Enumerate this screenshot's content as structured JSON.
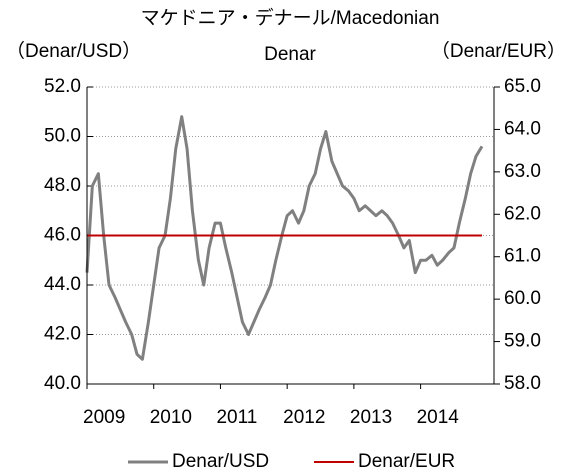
{
  "chart_data": {
    "type": "line",
    "title_lines": [
      "マケドニア・デナール/Macedonian",
      "Denar"
    ],
    "ylabel": "（Denar/USD）",
    "y2label": "（Denar/EUR）",
    "x": [
      2009.0,
      2009.08,
      2009.17,
      2009.25,
      2009.33,
      2009.42,
      2009.5,
      2009.58,
      2009.67,
      2009.75,
      2009.83,
      2009.92,
      2010.0,
      2010.08,
      2010.17,
      2010.25,
      2010.33,
      2010.42,
      2010.5,
      2010.58,
      2010.67,
      2010.75,
      2010.83,
      2010.92,
      2011.0,
      2011.08,
      2011.17,
      2011.25,
      2011.33,
      2011.42,
      2011.5,
      2011.58,
      2011.67,
      2011.75,
      2011.83,
      2011.92,
      2012.0,
      2012.08,
      2012.17,
      2012.25,
      2012.33,
      2012.42,
      2012.5,
      2012.58,
      2012.67,
      2012.75,
      2012.83,
      2012.92,
      2013.0,
      2013.08,
      2013.17,
      2013.25,
      2013.33,
      2013.42,
      2013.5,
      2013.58,
      2013.67,
      2013.75,
      2013.83,
      2013.92,
      2014.0,
      2014.08,
      2014.17,
      2014.25,
      2014.33,
      2014.42,
      2014.5,
      2014.58,
      2014.67,
      2014.75,
      2014.83,
      2014.92
    ],
    "xlim": [
      2009,
      2015.1
    ],
    "xticks": [
      2009,
      2010,
      2011,
      2012,
      2013,
      2014
    ],
    "ylim": [
      40,
      52
    ],
    "yticks": [
      {
        "value": 40,
        "label": "40.0"
      },
      {
        "value": 42,
        "label": "42.0"
      },
      {
        "value": 44,
        "label": "44.0"
      },
      {
        "value": 46,
        "label": "46.0"
      },
      {
        "value": 48,
        "label": "48.0"
      },
      {
        "value": 50,
        "label": "50.0"
      },
      {
        "value": 52,
        "label": "52.0"
      }
    ],
    "y2lim": [
      58,
      65
    ],
    "y2ticks": [
      {
        "value": 58,
        "label": "58.0"
      },
      {
        "value": 59,
        "label": "59.0"
      },
      {
        "value": 60,
        "label": "60.0"
      },
      {
        "value": 61,
        "label": "61.0"
      },
      {
        "value": 62,
        "label": "62.0"
      },
      {
        "value": 63,
        "label": "63.0"
      },
      {
        "value": 64,
        "label": "64.0"
      },
      {
        "value": 65,
        "label": "65.0"
      }
    ],
    "grid": true,
    "legend": "bottom",
    "series": [
      {
        "name": "Denar/USD",
        "color": "#808080",
        "axis": "y",
        "values": [
          44.5,
          48.0,
          48.5,
          46,
          44,
          43.5,
          43,
          42.5,
          42,
          41.2,
          41,
          42.5,
          44,
          45.5,
          46,
          47.5,
          49.5,
          50.8,
          49.5,
          47,
          45,
          44,
          45.5,
          46.5,
          46.5,
          45.5,
          44.5,
          43.5,
          42.5,
          42,
          42.5,
          43,
          43.5,
          44,
          45,
          46,
          46.8,
          47,
          46.5,
          47,
          48,
          48.5,
          49.5,
          50.2,
          49,
          48.5,
          48,
          47.8,
          47.5,
          47,
          47.2,
          47,
          46.8,
          47,
          46.8,
          46.5,
          46,
          45.5,
          45.8,
          44.5,
          45,
          45,
          45.2,
          44.8,
          45,
          45.3,
          45.5,
          46.5,
          47.5,
          48.5,
          49.2,
          49.6
        ]
      },
      {
        "name": "Denar/EUR",
        "color": "#c00000",
        "axis": "y2",
        "values": [
          61.5,
          61.5,
          61.5,
          61.5,
          61.5,
          61.5,
          61.5,
          61.5,
          61.5,
          61.5,
          61.5,
          61.5,
          61.5,
          61.5,
          61.5,
          61.5,
          61.5,
          61.5,
          61.5,
          61.5,
          61.5,
          61.5,
          61.5,
          61.5,
          61.5,
          61.5,
          61.5,
          61.5,
          61.5,
          61.5,
          61.5,
          61.5,
          61.5,
          61.5,
          61.5,
          61.5,
          61.5,
          61.5,
          61.5,
          61.5,
          61.5,
          61.5,
          61.5,
          61.5,
          61.5,
          61.5,
          61.5,
          61.5,
          61.5,
          61.5,
          61.5,
          61.5,
          61.5,
          61.5,
          61.5,
          61.5,
          61.5,
          61.5,
          61.5,
          61.5,
          61.5,
          61.5,
          61.5,
          61.5,
          61.5,
          61.5,
          61.5,
          61.5,
          61.5,
          61.5,
          61.5,
          61.5
        ]
      }
    ]
  }
}
